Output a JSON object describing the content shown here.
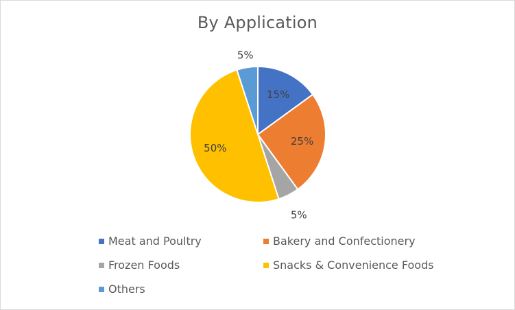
{
  "chart_data": {
    "type": "pie",
    "title": "By Application",
    "categories": [
      "Meat and Poultry",
      "Bakery and Confectionery",
      "Frozen Foods",
      "Snacks & Convenience Foods",
      "Others"
    ],
    "values": [
      15,
      25,
      5,
      50,
      5
    ],
    "data_labels": [
      "15%",
      "25%",
      "5%",
      "50%",
      "5%"
    ],
    "colors": [
      "#4472C4",
      "#ED7D31",
      "#A5A5A5",
      "#FFC000",
      "#5B9BD5"
    ],
    "legend_position": "bottom"
  }
}
